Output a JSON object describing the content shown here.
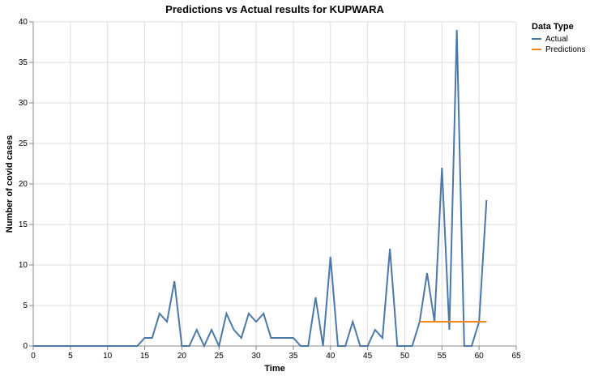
{
  "chart_data": {
    "type": "line",
    "title": "Predictions vs Actual results for KUPWARA",
    "xlabel": "Time",
    "ylabel": "Number of covid cases",
    "xlim": [
      0,
      65
    ],
    "ylim": [
      0,
      40
    ],
    "xticks": [
      0,
      5,
      10,
      15,
      20,
      25,
      30,
      35,
      40,
      45,
      50,
      55,
      60,
      65
    ],
    "yticks": [
      0,
      5,
      10,
      15,
      20,
      25,
      30,
      35,
      40
    ],
    "grid": true,
    "legend": {
      "title": "Data Type",
      "placement": "right"
    },
    "series": [
      {
        "name": "Actual",
        "color": "#4c78a8",
        "x": [
          0,
          1,
          2,
          3,
          4,
          5,
          6,
          7,
          8,
          9,
          10,
          11,
          12,
          13,
          14,
          15,
          16,
          17,
          18,
          19,
          20,
          21,
          22,
          23,
          24,
          25,
          26,
          27,
          28,
          29,
          30,
          31,
          32,
          33,
          34,
          35,
          36,
          37,
          38,
          39,
          40,
          41,
          42,
          43,
          44,
          45,
          46,
          47,
          48,
          49,
          50,
          51,
          52,
          53,
          54,
          55,
          56,
          57,
          58,
          59,
          60,
          61
        ],
        "values": [
          0,
          0,
          0,
          0,
          0,
          0,
          0,
          0,
          0,
          0,
          0,
          0,
          0,
          0,
          0,
          1,
          1,
          4,
          3,
          8,
          0,
          0,
          2,
          0,
          2,
          0,
          4,
          2,
          1,
          4,
          3,
          4,
          1,
          1,
          1,
          1,
          0,
          0,
          6,
          0,
          11,
          0,
          0,
          3,
          0,
          0,
          2,
          1,
          12,
          0,
          0,
          0,
          3,
          9,
          3,
          22,
          2,
          39,
          0,
          0,
          3,
          18
        ]
      },
      {
        "name": "Predictions",
        "color": "#f58518",
        "x": [
          52,
          53,
          54,
          55,
          56,
          57,
          58,
          59,
          60,
          61
        ],
        "values": [
          3,
          3,
          3,
          3,
          3,
          3,
          3,
          3,
          3,
          3
        ]
      }
    ]
  }
}
